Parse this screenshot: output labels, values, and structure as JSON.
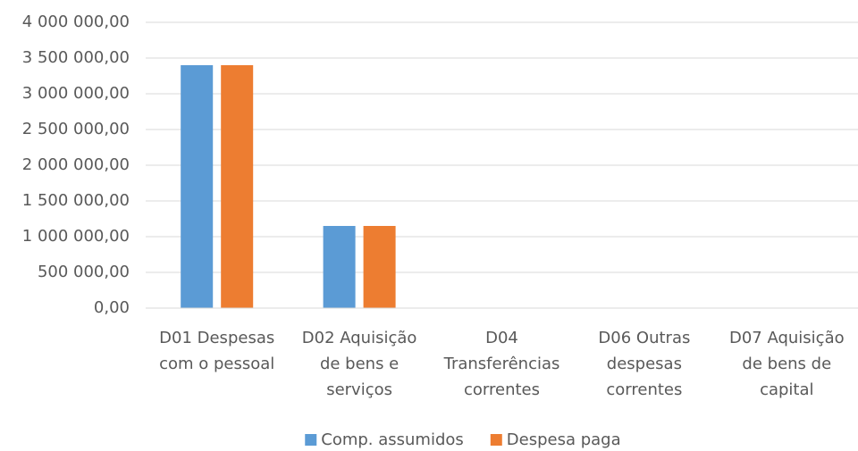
{
  "chart_data": {
    "type": "bar",
    "categories": [
      "D01 Despesas com o pessoal",
      "D02 Aquisição de bens e serviços",
      "D04 Transferências correntes",
      "D06 Outras despesas correntes",
      "D07 Aquisição de bens de capital"
    ],
    "series": [
      {
        "name": "Comp. assumidos",
        "color": "#5b9bd5",
        "values": [
          3400000,
          1150000,
          0,
          0,
          0
        ]
      },
      {
        "name": "Despesa paga",
        "color": "#ed7d31",
        "values": [
          3400000,
          1150000,
          0,
          0,
          0
        ]
      }
    ],
    "ylim": [
      0,
      4000000
    ],
    "yticks": [
      {
        "value": 0,
        "label": "0,00"
      },
      {
        "value": 500000,
        "label": "500 000,00"
      },
      {
        "value": 1000000,
        "label": "1 000 000,00"
      },
      {
        "value": 1500000,
        "label": "1 500 000,00"
      },
      {
        "value": 2000000,
        "label": "2 000 000,00"
      },
      {
        "value": 2500000,
        "label": "2 500 000,00"
      },
      {
        "value": 3000000,
        "label": "3 000 000,00"
      },
      {
        "value": 3500000,
        "label": "3 500 000,00"
      },
      {
        "value": 4000000,
        "label": "4 000 000,00"
      }
    ],
    "grid": true,
    "legend": "bottom"
  }
}
